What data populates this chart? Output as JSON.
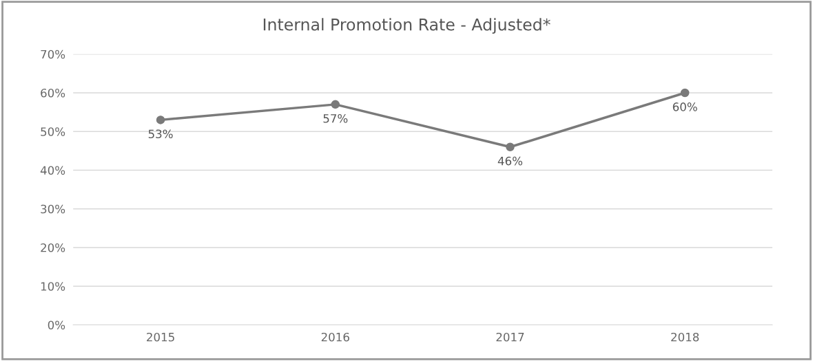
{
  "chart_data": {
    "type": "line",
    "title": "Internal Promotion Rate - Adjusted*",
    "categories": [
      "2015",
      "2016",
      "2017",
      "2018"
    ],
    "series": [
      {
        "color": "#7a7a7a",
        "values": [
          53,
          57,
          46,
          60
        ],
        "value_labels": [
          "53%",
          "57%",
          "46%",
          "60%"
        ]
      }
    ],
    "ylim": [
      0,
      70
    ],
    "yticks": [
      {
        "value": 0,
        "label": "0%"
      },
      {
        "value": 10,
        "label": "10%"
      },
      {
        "value": 20,
        "label": "20%"
      },
      {
        "value": 30,
        "label": "30%"
      },
      {
        "value": 40,
        "label": "40%"
      },
      {
        "value": 50,
        "label": "50%"
      },
      {
        "value": 60,
        "label": "60%"
      },
      {
        "value": 70,
        "label": "70%"
      }
    ],
    "grid": "y",
    "marker": "circle",
    "line_style": "solid"
  }
}
